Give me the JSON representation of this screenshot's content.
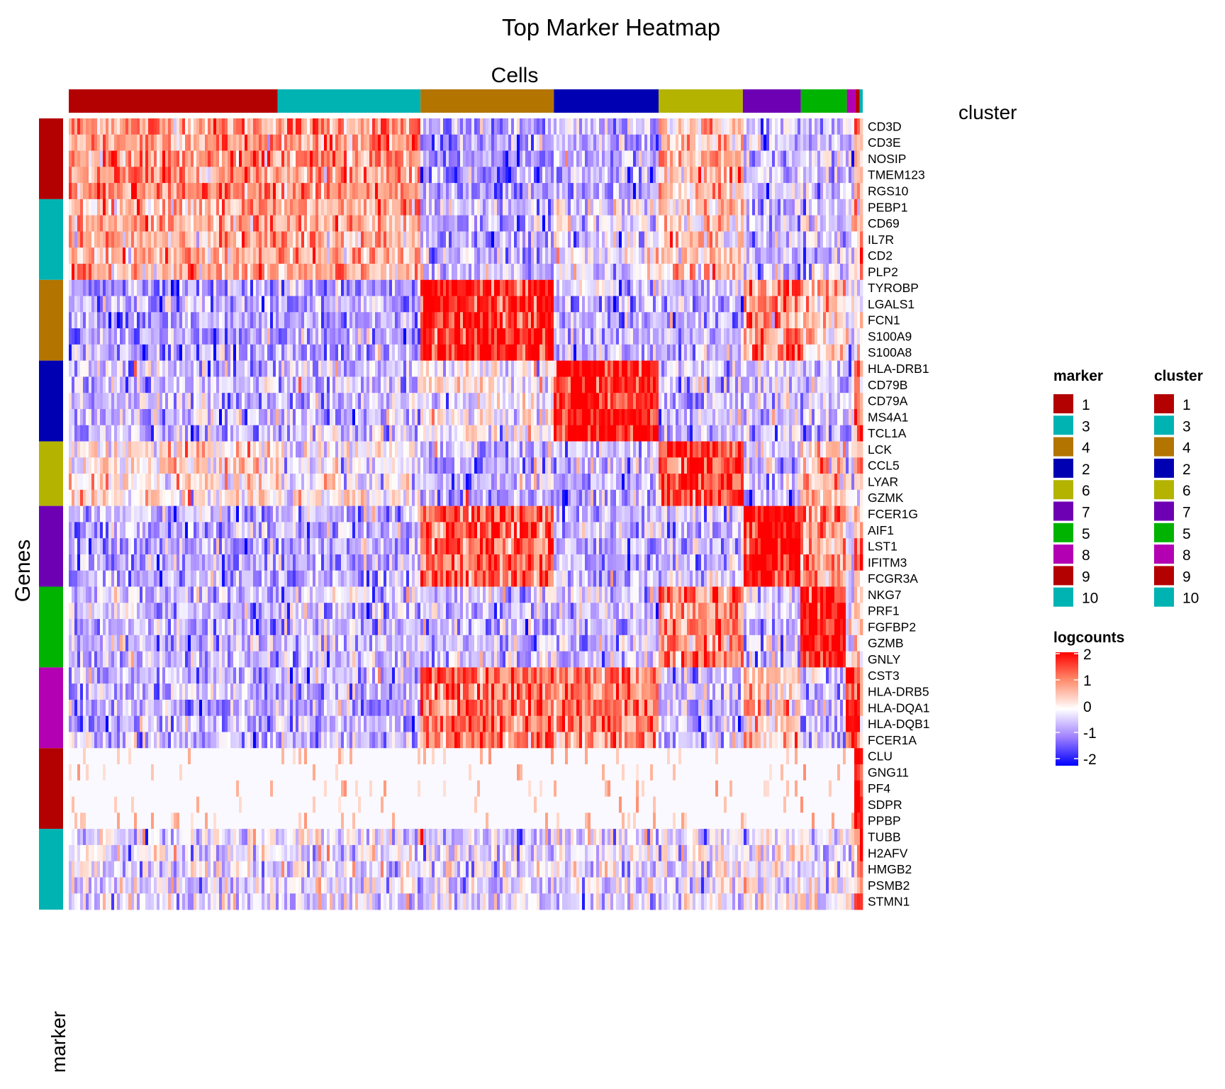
{
  "chart_data": {
    "type": "heatmap",
    "title": "Top Marker Heatmap",
    "column_title": "Cells",
    "row_title": "Genes",
    "row_annotation_label": "marker",
    "column_annotation_label": "cluster",
    "genes": [
      "CD3D",
      "CD3E",
      "NOSIP",
      "TMEM123",
      "RGS10",
      "PEBP1",
      "CD69",
      "IL7R",
      "CD2",
      "PLP2",
      "TYROBP",
      "LGALS1",
      "FCN1",
      "S100A9",
      "S100A8",
      "HLA-DRB1",
      "CD79B",
      "CD79A",
      "MS4A1",
      "TCL1A",
      "LCK",
      "CCL5",
      "LYAR",
      "GZMK",
      "FCER1G",
      "AIF1",
      "LST1",
      "IFITM3",
      "FCGR3A",
      "NKG7",
      "PRF1",
      "FGFBP2",
      "GZMB",
      "GNLY",
      "CST3",
      "HLA-DRB5",
      "HLA-DQA1",
      "HLA-DQB1",
      "FCER1A",
      "CLU",
      "GNG11",
      "PF4",
      "SDPR",
      "PPBP",
      "TUBB",
      "H2AFV",
      "HMGB2",
      "PSMB2",
      "STMN1"
    ],
    "gene_marker_group": [
      "1",
      "1",
      "1",
      "1",
      "1",
      "3",
      "3",
      "3",
      "3",
      "3",
      "4",
      "4",
      "4",
      "4",
      "4",
      "2",
      "2",
      "2",
      "2",
      "2",
      "6",
      "6",
      "6",
      "6",
      "7",
      "7",
      "7",
      "7",
      "7",
      "5",
      "5",
      "5",
      "5",
      "5",
      "8",
      "8",
      "8",
      "8",
      "8",
      "9",
      "9",
      "9",
      "9",
      "9",
      "10",
      "10",
      "10",
      "10",
      "10"
    ],
    "cluster_order": [
      "1",
      "3",
      "4",
      "2",
      "6",
      "7",
      "5",
      "8",
      "9",
      "10"
    ],
    "cluster_cell_share": [
      0.263,
      0.18,
      0.168,
      0.132,
      0.106,
      0.073,
      0.058,
      0.011,
      0.005,
      0.004
    ],
    "mean_logcounts_by_group_and_cluster": {
      "1": [
        1.0,
        1.0,
        -0.8,
        -0.6,
        0.6,
        -0.6,
        -0.5,
        -0.5,
        1.5,
        0.0
      ],
      "3": [
        0.8,
        0.7,
        -0.6,
        -0.2,
        0.5,
        -0.5,
        -0.5,
        -0.4,
        0.5,
        0.5
      ],
      "4": [
        -0.7,
        -0.7,
        1.9,
        -0.6,
        -0.6,
        1.1,
        0.5,
        -0.4,
        0.0,
        0.0
      ],
      "2": [
        -0.5,
        -0.5,
        0.0,
        1.9,
        -0.5,
        -0.3,
        -0.4,
        -0.4,
        1.2,
        0.5
      ],
      "6": [
        0.3,
        0.0,
        -0.6,
        -0.6,
        1.6,
        -0.5,
        0.6,
        -0.3,
        0.3,
        0.5
      ],
      "7": [
        -0.6,
        -0.6,
        1.4,
        -0.6,
        -0.5,
        2.0,
        0.9,
        -0.3,
        0.8,
        1.0
      ],
      "5": [
        -0.5,
        -0.5,
        -0.5,
        -0.5,
        1.1,
        -0.4,
        2.0,
        -0.3,
        0.5,
        0.5
      ],
      "8": [
        -0.6,
        -0.6,
        1.3,
        1.2,
        -0.5,
        0.5,
        -0.5,
        2.0,
        1.5,
        0.5
      ],
      "9": [
        -0.1,
        -0.1,
        -0.1,
        -0.1,
        -0.1,
        -0.1,
        -0.1,
        -0.1,
        2.0,
        2.0
      ],
      "10": [
        -0.2,
        -0.2,
        -0.3,
        -0.2,
        -0.2,
        -0.1,
        -0.1,
        -0.1,
        1.0,
        2.0
      ]
    },
    "color_scale": {
      "breaks": [
        -2,
        -1,
        0,
        1,
        2
      ],
      "colors": [
        "#0000ff",
        "#9f80ff",
        "#ffffff",
        "#ff9f80",
        "#ff0000"
      ],
      "title": "logcounts",
      "tick_labels": [
        "2",
        "1",
        "0",
        "-1",
        "-2"
      ]
    },
    "legend": {
      "position": "right",
      "marker_title": "marker",
      "cluster_title": "cluster",
      "levels": [
        "1",
        "3",
        "4",
        "2",
        "6",
        "7",
        "5",
        "8",
        "9",
        "10"
      ]
    }
  },
  "group_colors": {
    "1": "#b30000",
    "3": "#00b3b3",
    "4": "#b37400",
    "2": "#0000b3",
    "6": "#b3b300",
    "7": "#6e00b3",
    "5": "#00b300",
    "8": "#b300b3",
    "9": "#b30000",
    "10": "#00b3b3"
  }
}
